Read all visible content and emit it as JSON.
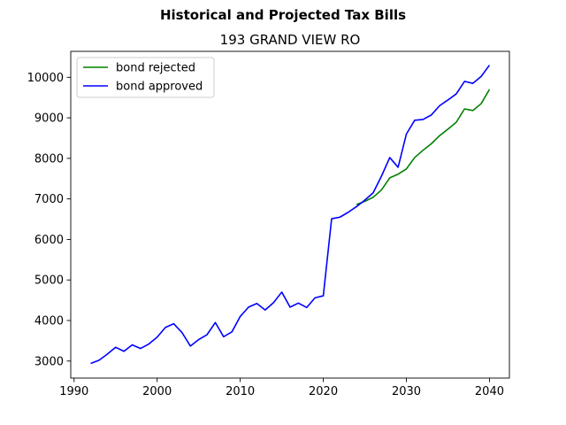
{
  "chart_data": {
    "type": "line",
    "title": "Historical and Projected Tax Bills",
    "subtitle": "193 GRAND VIEW RO",
    "xlabel": "",
    "ylabel": "",
    "xlim": [
      1989.6,
      2042.4
    ],
    "ylim": [
      2580,
      10640
    ],
    "xticks": [
      1990,
      2000,
      2010,
      2020,
      2030,
      2040
    ],
    "yticks": [
      3000,
      4000,
      5000,
      6000,
      7000,
      8000,
      9000,
      10000
    ],
    "grid": false,
    "legend_position": "upper-left",
    "series": [
      {
        "name": "bond rejected",
        "color": "#008000",
        "x": [
          2024,
          2025,
          2026,
          2027,
          2028,
          2029,
          2030,
          2031,
          2032,
          2033,
          2034,
          2035,
          2036,
          2037,
          2038,
          2039,
          2040
        ],
        "y": [
          6860,
          6940,
          7040,
          7220,
          7520,
          7610,
          7740,
          8020,
          8200,
          8360,
          8560,
          8720,
          8890,
          9220,
          9180,
          9350,
          9700
        ]
      },
      {
        "name": "bond approved",
        "color": "#0000ff",
        "x": [
          1992,
          1993,
          1994,
          1995,
          1996,
          1997,
          1998,
          1999,
          2000,
          2001,
          2002,
          2003,
          2004,
          2005,
          2006,
          2007,
          2008,
          2009,
          2010,
          2011,
          2012,
          2013,
          2014,
          2015,
          2016,
          2017,
          2018,
          2019,
          2020,
          2021,
          2022,
          2023,
          2024,
          2025,
          2026,
          2027,
          2028,
          2029,
          2030,
          2031,
          2032,
          2033,
          2034,
          2035,
          2036,
          2037,
          2038,
          2039,
          2040
        ],
        "y": [
          2940,
          3020,
          3170,
          3340,
          3240,
          3400,
          3310,
          3420,
          3590,
          3830,
          3920,
          3700,
          3370,
          3530,
          3650,
          3950,
          3600,
          3720,
          4100,
          4330,
          4420,
          4260,
          4440,
          4700,
          4330,
          4430,
          4320,
          4560,
          4610,
          6510,
          6550,
          6670,
          6810,
          6970,
          7150,
          7560,
          8020,
          7780,
          8600,
          8940,
          8960,
          9070,
          9300,
          9440,
          9590,
          9900,
          9850,
          10020,
          10300
        ]
      }
    ]
  }
}
